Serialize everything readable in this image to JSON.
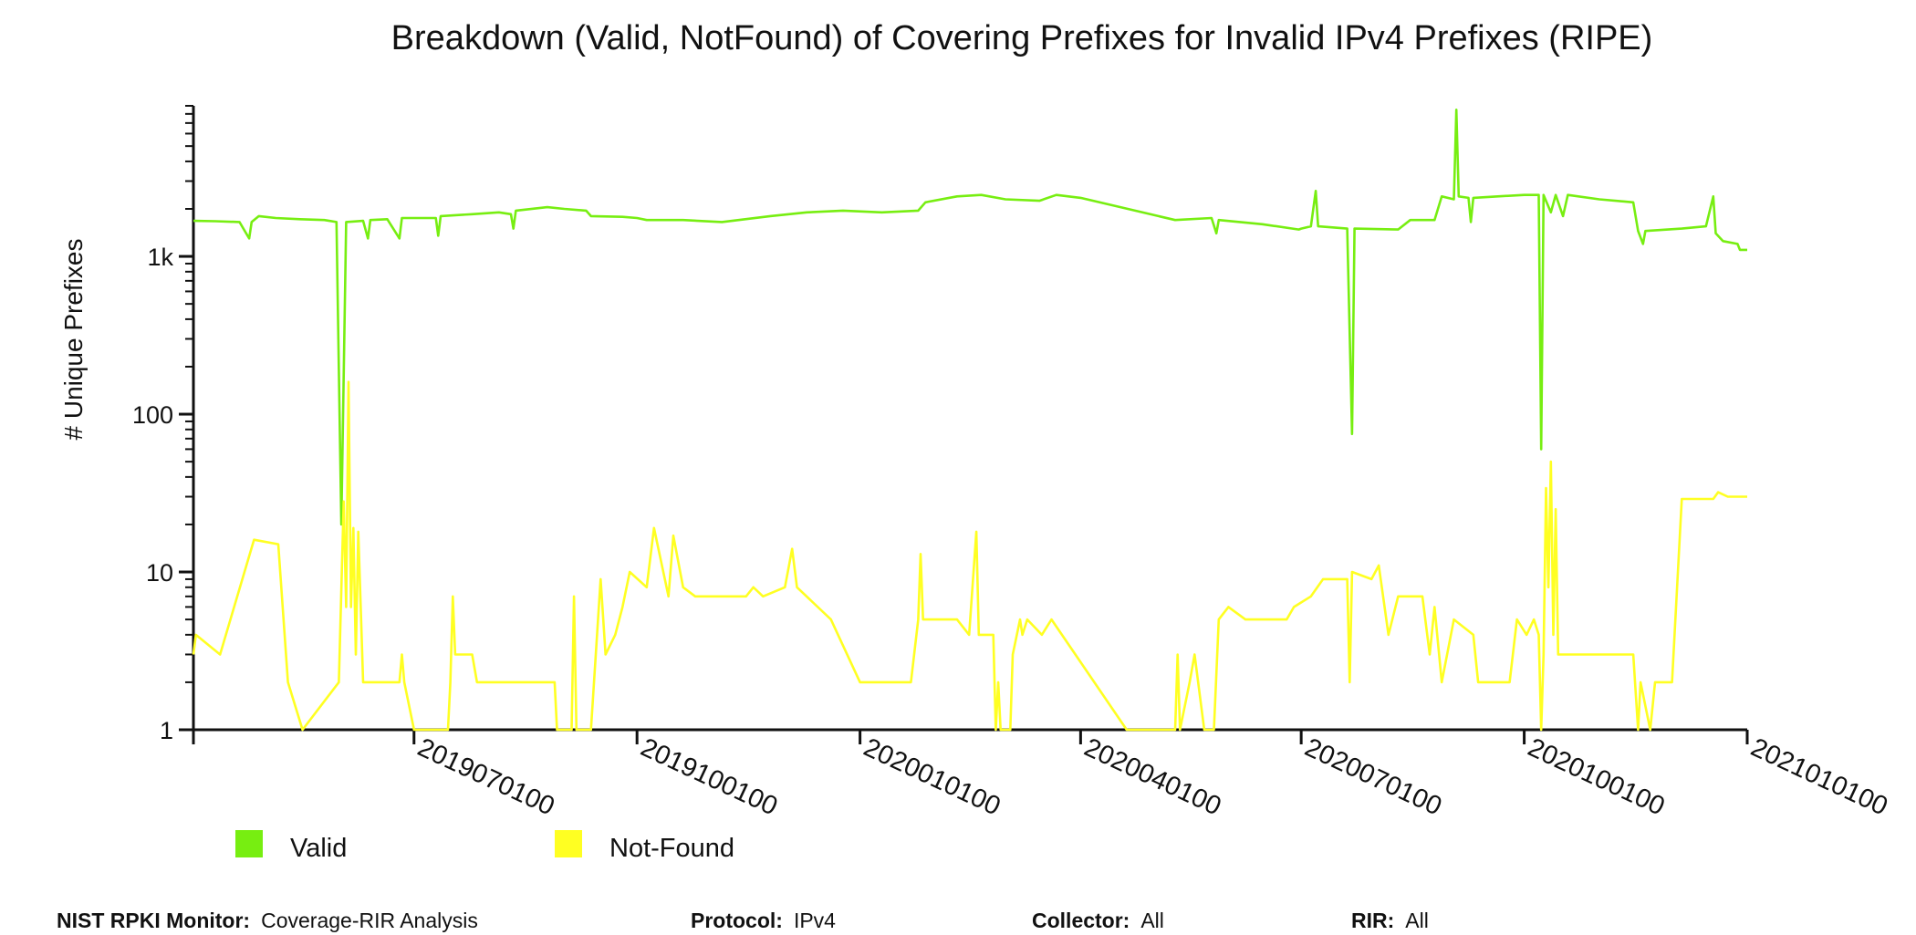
{
  "chart_data": {
    "type": "line",
    "title": "Breakdown (Valid, NotFound) of Covering Prefixes for Invalid IPv4 Prefixes (RIPE)",
    "ylabel": "# Unique Prefixes",
    "xlabel": "",
    "yscale": "log",
    "ylim": [
      1,
      9000
    ],
    "xlim": [
      "2019-04-01",
      "2021-01-01"
    ],
    "y_ticks": [
      {
        "value": 1,
        "label": "1"
      },
      {
        "value": 10,
        "label": "10"
      },
      {
        "value": 100,
        "label": "100"
      },
      {
        "value": 1000,
        "label": "1k"
      }
    ],
    "x_ticks": [
      {
        "date": "2019-07-01",
        "label": "2019070100"
      },
      {
        "date": "2019-10-01",
        "label": "2019100100"
      },
      {
        "date": "2020-01-01",
        "label": "2020010100"
      },
      {
        "date": "2020-04-01",
        "label": "2020040100"
      },
      {
        "date": "2020-07-01",
        "label": "2020070100"
      },
      {
        "date": "2020-10-01",
        "label": "2020100100"
      },
      {
        "date": "2021-01-01",
        "label": "2021010100"
      }
    ],
    "grid": false,
    "legend_position": "bottom-left",
    "series": [
      {
        "name": "Valid",
        "color": "#77ee11",
        "points": [
          [
            "2019-04-01",
            1680
          ],
          [
            "2019-04-10",
            1670
          ],
          [
            "2019-04-20",
            1650
          ],
          [
            "2019-04-24",
            1300
          ],
          [
            "2019-04-25",
            1650
          ],
          [
            "2019-04-28",
            1800
          ],
          [
            "2019-05-05",
            1750
          ],
          [
            "2019-05-15",
            1720
          ],
          [
            "2019-05-25",
            1700
          ],
          [
            "2019-05-30",
            1650
          ],
          [
            "2019-06-01",
            20
          ],
          [
            "2019-06-03",
            1650
          ],
          [
            "2019-06-10",
            1680
          ],
          [
            "2019-06-12",
            1300
          ],
          [
            "2019-06-13",
            1700
          ],
          [
            "2019-06-20",
            1720
          ],
          [
            "2019-06-25",
            1300
          ],
          [
            "2019-06-26",
            1750
          ],
          [
            "2019-07-05",
            1750
          ],
          [
            "2019-07-10",
            1750
          ],
          [
            "2019-07-11",
            1350
          ],
          [
            "2019-07-12",
            1800
          ],
          [
            "2019-07-25",
            1850
          ],
          [
            "2019-08-05",
            1900
          ],
          [
            "2019-08-10",
            1850
          ],
          [
            "2019-08-11",
            1500
          ],
          [
            "2019-08-12",
            1950
          ],
          [
            "2019-08-25",
            2050
          ],
          [
            "2019-09-01",
            2000
          ],
          [
            "2019-09-10",
            1950
          ],
          [
            "2019-09-12",
            1800
          ],
          [
            "2019-09-25",
            1780
          ],
          [
            "2019-10-01",
            1750
          ],
          [
            "2019-10-05",
            1700
          ],
          [
            "2019-10-20",
            1700
          ],
          [
            "2019-11-05",
            1650
          ],
          [
            "2019-11-25",
            1800
          ],
          [
            "2019-12-10",
            1900
          ],
          [
            "2019-12-25",
            1950
          ],
          [
            "2020-01-10",
            1900
          ],
          [
            "2020-01-25",
            1950
          ],
          [
            "2020-01-28",
            2200
          ],
          [
            "2020-02-10",
            2400
          ],
          [
            "2020-02-20",
            2450
          ],
          [
            "2020-03-01",
            2300
          ],
          [
            "2020-03-15",
            2250
          ],
          [
            "2020-03-22",
            2450
          ],
          [
            "2020-04-01",
            2350
          ],
          [
            "2020-05-10",
            1700
          ],
          [
            "2020-05-25",
            1750
          ],
          [
            "2020-05-27",
            1400
          ],
          [
            "2020-05-28",
            1700
          ],
          [
            "2020-06-15",
            1600
          ],
          [
            "2020-06-30",
            1480
          ],
          [
            "2020-07-01",
            1500
          ],
          [
            "2020-07-05",
            1550
          ],
          [
            "2020-07-07",
            2600
          ],
          [
            "2020-07-08",
            1550
          ],
          [
            "2020-07-20",
            1500
          ],
          [
            "2020-07-22",
            75
          ],
          [
            "2020-07-23",
            1500
          ],
          [
            "2020-08-10",
            1480
          ],
          [
            "2020-08-15",
            1700
          ],
          [
            "2020-08-25",
            1700
          ],
          [
            "2020-08-28",
            2400
          ],
          [
            "2020-09-02",
            2300
          ],
          [
            "2020-09-03",
            8500
          ],
          [
            "2020-09-04",
            2400
          ],
          [
            "2020-09-08",
            2350
          ],
          [
            "2020-09-09",
            1650
          ],
          [
            "2020-09-10",
            2350
          ],
          [
            "2020-09-20",
            2400
          ],
          [
            "2020-10-01",
            2450
          ],
          [
            "2020-10-07",
            2450
          ],
          [
            "2020-10-08",
            60
          ],
          [
            "2020-10-09",
            2450
          ],
          [
            "2020-10-12",
            1900
          ],
          [
            "2020-10-14",
            2450
          ],
          [
            "2020-10-17",
            1800
          ],
          [
            "2020-10-19",
            2450
          ],
          [
            "2020-11-01",
            2300
          ],
          [
            "2020-11-15",
            2200
          ],
          [
            "2020-11-17",
            1450
          ],
          [
            "2020-11-19",
            1200
          ],
          [
            "2020-11-20",
            1450
          ],
          [
            "2020-12-05",
            1500
          ],
          [
            "2020-12-15",
            1550
          ],
          [
            "2020-12-18",
            2400
          ],
          [
            "2020-12-19",
            1400
          ],
          [
            "2020-12-22",
            1250
          ],
          [
            "2020-12-28",
            1200
          ],
          [
            "2020-12-29",
            1100
          ],
          [
            "2021-01-01",
            1100
          ]
        ]
      },
      {
        "name": "Not-Found",
        "color": "#ffff22",
        "points": [
          [
            "2019-04-01",
            3
          ],
          [
            "2019-04-02",
            4
          ],
          [
            "2019-04-12",
            3
          ],
          [
            "2019-04-26",
            16
          ],
          [
            "2019-05-06",
            15
          ],
          [
            "2019-05-10",
            2
          ],
          [
            "2019-05-16",
            1
          ],
          [
            "2019-05-31",
            2
          ],
          [
            "2019-06-02",
            28
          ],
          [
            "2019-06-03",
            6
          ],
          [
            "2019-06-04",
            160
          ],
          [
            "2019-06-05",
            6
          ],
          [
            "2019-06-06",
            19
          ],
          [
            "2019-06-07",
            3
          ],
          [
            "2019-06-08",
            18
          ],
          [
            "2019-06-10",
            2
          ],
          [
            "2019-06-25",
            2
          ],
          [
            "2019-06-26",
            3
          ],
          [
            "2019-06-27",
            2
          ],
          [
            "2019-07-01",
            1
          ],
          [
            "2019-07-15",
            1
          ],
          [
            "2019-07-16",
            2
          ],
          [
            "2019-07-17",
            7
          ],
          [
            "2019-07-18",
            3
          ],
          [
            "2019-07-25",
            3
          ],
          [
            "2019-07-27",
            2
          ],
          [
            "2019-08-10",
            2
          ],
          [
            "2019-08-28",
            2
          ],
          [
            "2019-08-29",
            1
          ],
          [
            "2019-09-04",
            1
          ],
          [
            "2019-09-05",
            7
          ],
          [
            "2019-09-06",
            1
          ],
          [
            "2019-09-12",
            1
          ],
          [
            "2019-09-14",
            3
          ],
          [
            "2019-09-16",
            9
          ],
          [
            "2019-09-18",
            3
          ],
          [
            "2019-09-22",
            4
          ],
          [
            "2019-09-25",
            6
          ],
          [
            "2019-09-28",
            10
          ],
          [
            "2019-10-05",
            8
          ],
          [
            "2019-10-08",
            19
          ],
          [
            "2019-10-14",
            7
          ],
          [
            "2019-10-16",
            17
          ],
          [
            "2019-10-20",
            8
          ],
          [
            "2019-10-25",
            7
          ],
          [
            "2019-11-15",
            7
          ],
          [
            "2019-11-18",
            8
          ],
          [
            "2019-11-22",
            7
          ],
          [
            "2019-12-01",
            8
          ],
          [
            "2019-12-04",
            14
          ],
          [
            "2019-12-06",
            8
          ],
          [
            "2019-12-20",
            5
          ],
          [
            "2020-01-01",
            2
          ],
          [
            "2020-01-22",
            2
          ],
          [
            "2020-01-25",
            5
          ],
          [
            "2020-01-26",
            13
          ],
          [
            "2020-01-27",
            5
          ],
          [
            "2020-02-10",
            5
          ],
          [
            "2020-02-15",
            4
          ],
          [
            "2020-02-18",
            18
          ],
          [
            "2020-02-19",
            4
          ],
          [
            "2020-02-25",
            4
          ],
          [
            "2020-02-26",
            1
          ],
          [
            "2020-02-27",
            2
          ],
          [
            "2020-02-28",
            1
          ],
          [
            "2020-03-03",
            1
          ],
          [
            "2020-03-04",
            3
          ],
          [
            "2020-03-07",
            5
          ],
          [
            "2020-03-08",
            4
          ],
          [
            "2020-03-10",
            5
          ],
          [
            "2020-03-16",
            4
          ],
          [
            "2020-03-20",
            5
          ],
          [
            "2020-04-20",
            1
          ],
          [
            "2020-05-10",
            1
          ],
          [
            "2020-05-11",
            3
          ],
          [
            "2020-05-12",
            1
          ],
          [
            "2020-05-16",
            2
          ],
          [
            "2020-05-18",
            3
          ],
          [
            "2020-05-22",
            1
          ],
          [
            "2020-05-26",
            1
          ],
          [
            "2020-05-28",
            5
          ],
          [
            "2020-06-01",
            6
          ],
          [
            "2020-06-08",
            5
          ],
          [
            "2020-06-25",
            5
          ],
          [
            "2020-06-28",
            6
          ],
          [
            "2020-07-05",
            7
          ],
          [
            "2020-07-10",
            9
          ],
          [
            "2020-07-20",
            9
          ],
          [
            "2020-07-21",
            2
          ],
          [
            "2020-07-22",
            10
          ],
          [
            "2020-07-30",
            9
          ],
          [
            "2020-08-02",
            11
          ],
          [
            "2020-08-06",
            4
          ],
          [
            "2020-08-10",
            7
          ],
          [
            "2020-08-20",
            7
          ],
          [
            "2020-08-23",
            3
          ],
          [
            "2020-08-25",
            6
          ],
          [
            "2020-08-28",
            2
          ],
          [
            "2020-09-02",
            5
          ],
          [
            "2020-09-10",
            4
          ],
          [
            "2020-09-12",
            2
          ],
          [
            "2020-09-25",
            2
          ],
          [
            "2020-09-28",
            5
          ],
          [
            "2020-10-02",
            4
          ],
          [
            "2020-10-05",
            5
          ],
          [
            "2020-10-07",
            4
          ],
          [
            "2020-10-08",
            1
          ],
          [
            "2020-10-09",
            3
          ],
          [
            "2020-10-10",
            34
          ],
          [
            "2020-10-11",
            8
          ],
          [
            "2020-10-12",
            50
          ],
          [
            "2020-10-13",
            4
          ],
          [
            "2020-10-14",
            25
          ],
          [
            "2020-10-15",
            3
          ],
          [
            "2020-11-05",
            3
          ],
          [
            "2020-11-15",
            3
          ],
          [
            "2020-11-17",
            1
          ],
          [
            "2020-11-18",
            2
          ],
          [
            "2020-11-22",
            1
          ],
          [
            "2020-11-24",
            2
          ],
          [
            "2020-12-01",
            2
          ],
          [
            "2020-12-05",
            29
          ],
          [
            "2020-12-18",
            29
          ],
          [
            "2020-12-20",
            32
          ],
          [
            "2020-12-24",
            30
          ],
          [
            "2021-01-01",
            30
          ]
        ]
      }
    ]
  },
  "legend": [
    {
      "label": "Valid",
      "color": "#77ee11"
    },
    {
      "label": "Not-Found",
      "color": "#ffff22"
    }
  ],
  "footer": {
    "monitor_label": "NIST RPKI Monitor:",
    "monitor_value": "Coverage-RIR Analysis",
    "protocol_label": "Protocol:",
    "protocol_value": "IPv4",
    "collector_label": "Collector:",
    "collector_value": "All",
    "rir_label": "RIR:",
    "rir_value": "All"
  }
}
